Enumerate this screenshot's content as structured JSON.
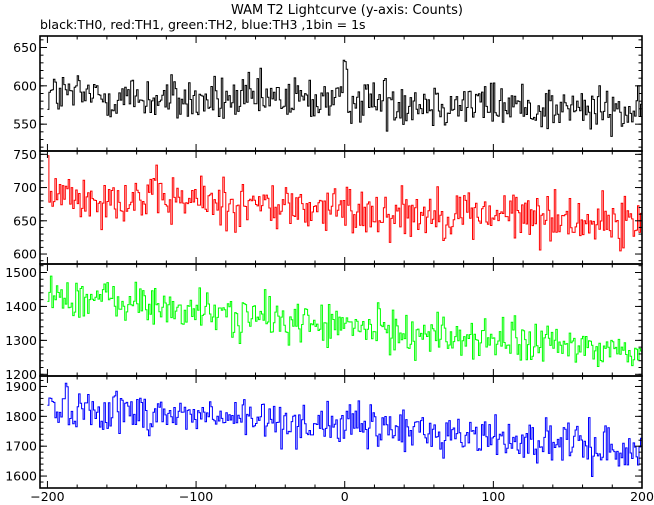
{
  "figure": {
    "title": "WAM T2 Lightcurve (y-axis: Counts)",
    "subtitle": "black:TH0, red:TH1, green:TH2, blue:TH3 ,1bin = 1s"
  },
  "chart_data": {
    "type": "line",
    "title": "WAM T2 Lightcurve (y-axis: Counts)",
    "subtitle": "black:TH0, red:TH1, green:TH2, blue:TH3 ,1bin = 1s",
    "x_range": [
      -205,
      200
    ],
    "x_ticks": [
      -200,
      -100,
      0,
      100,
      200
    ],
    "x_tick_labels": [
      "-200",
      "-100",
      "0",
      "100",
      "200"
    ],
    "grid": false,
    "legend": "none",
    "panels": [
      {
        "series": "TH0",
        "color": "#000000",
        "ylim": [
          515,
          665
        ],
        "yticks": [
          550,
          600,
          650
        ],
        "trend": [
          [
            -200,
            590
          ],
          [
            -100,
            580
          ],
          [
            0,
            583
          ],
          [
            100,
            575
          ],
          [
            200,
            565
          ]
        ],
        "noise": 22,
        "features": [
          {
            "x": 0,
            "peak": 625
          }
        ]
      },
      {
        "series": "TH1",
        "color": "#ff0000",
        "ylim": [
          585,
          755
        ],
        "yticks": [
          600,
          650,
          700,
          750
        ],
        "trend": [
          [
            -200,
            690
          ],
          [
            -100,
            680
          ],
          [
            0,
            665
          ],
          [
            100,
            660
          ],
          [
            200,
            645
          ]
        ],
        "noise": 27,
        "features": []
      },
      {
        "series": "TH2",
        "color": "#00ff00",
        "ylim": [
          1195,
          1525
        ],
        "yticks": [
          1200,
          1300,
          1400,
          1500
        ],
        "trend": [
          [
            -200,
            1440
          ],
          [
            -100,
            1385
          ],
          [
            0,
            1340
          ],
          [
            100,
            1300
          ],
          [
            200,
            1265
          ]
        ],
        "noise": 45,
        "features": []
      },
      {
        "series": "TH3",
        "color": "#0000ff",
        "ylim": [
          1560,
          1935
        ],
        "yticks": [
          1600,
          1700,
          1800,
          1900
        ],
        "trend": [
          [
            -200,
            1835
          ],
          [
            -100,
            1800
          ],
          [
            0,
            1770
          ],
          [
            100,
            1730
          ],
          [
            200,
            1680
          ]
        ],
        "noise": 50,
        "features": []
      }
    ]
  }
}
